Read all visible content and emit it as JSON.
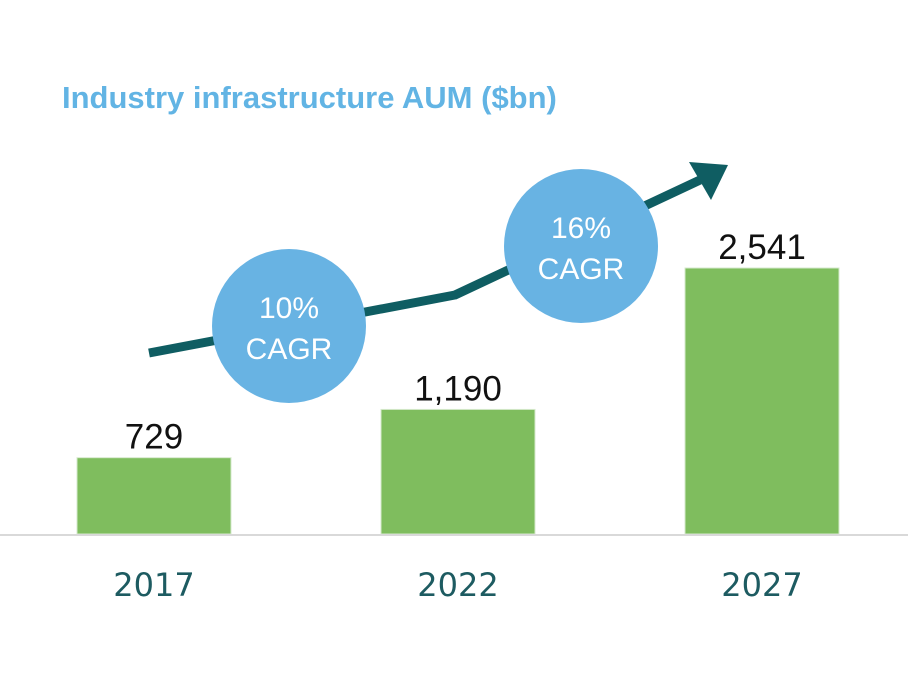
{
  "chart_data": {
    "type": "bar",
    "title": "Industry infrastructure AUM ($bn)",
    "categories": [
      "2017",
      "2022",
      "2027"
    ],
    "values": [
      729,
      1190,
      2541
    ],
    "value_labels": [
      "729",
      "1,190",
      "2,541"
    ],
    "xlabel": "",
    "ylabel": "",
    "grid": false,
    "legend": "none",
    "annotations": [
      {
        "line1": "10%",
        "line2": "CAGR",
        "between": [
          "2017",
          "2022"
        ]
      },
      {
        "line1": "16%",
        "line2": "CAGR",
        "between": [
          "2022",
          "2027"
        ]
      }
    ],
    "trend_arrow": true
  },
  "colors": {
    "bar": "#7fbd5e",
    "title": "#62b4e4",
    "bubble": "#68b3e3",
    "arrow": "#0f5d62",
    "category_text": "#1d5b61",
    "baseline": "#d9d9d9"
  }
}
